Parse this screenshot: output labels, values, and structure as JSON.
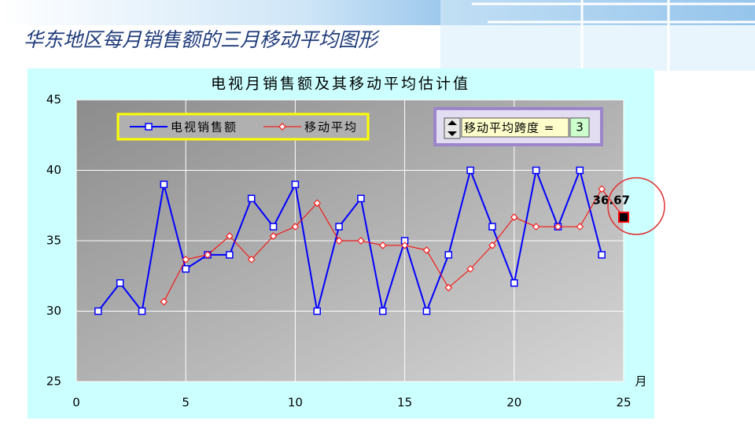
{
  "title": "华东地区每月销售额的三月移动平均图形",
  "chart_data": {
    "type": "line",
    "title": "电视月销售额及其移动平均估计值",
    "x_label": "月",
    "x": [
      1,
      2,
      3,
      4,
      5,
      6,
      7,
      8,
      9,
      10,
      11,
      12,
      13,
      14,
      15,
      16,
      17,
      18,
      19,
      20,
      21,
      22,
      23,
      24,
      25
    ],
    "series": [
      {
        "name": "电视销售额",
        "color": "#0000ff",
        "marker": "square",
        "values": [
          30,
          32,
          30,
          39,
          33,
          34,
          34,
          38,
          36,
          39,
          30,
          36,
          38,
          30,
          35,
          30,
          34,
          40,
          36,
          32,
          40,
          36,
          40,
          34,
          null
        ]
      },
      {
        "name": "移动平均",
        "color": "#ff0000",
        "marker": "diamond",
        "values": [
          null,
          null,
          null,
          30.67,
          33.67,
          34,
          35.33,
          33.67,
          35.33,
          36,
          37.67,
          35,
          35,
          34.67,
          34.67,
          34.33,
          31.67,
          33,
          34.67,
          36.67,
          36,
          36,
          36,
          38.67,
          36.67
        ],
        "value_labels": [
          null,
          null,
          null,
          null,
          null,
          null,
          null,
          null,
          null,
          null,
          null,
          null,
          null,
          null,
          null,
          null,
          null,
          null,
          null,
          null,
          null,
          null,
          null,
          null,
          "36.67"
        ]
      }
    ],
    "xlim": [
      0,
      25
    ],
    "xticks": [
      0,
      5,
      10,
      15,
      20,
      25
    ],
    "ylim": [
      25,
      45
    ],
    "yticks": [
      25,
      30,
      35,
      40,
      45
    ],
    "grid": true,
    "legend": "top-left",
    "span_label": "移动平均跨度 =",
    "span_value": 3
  }
}
